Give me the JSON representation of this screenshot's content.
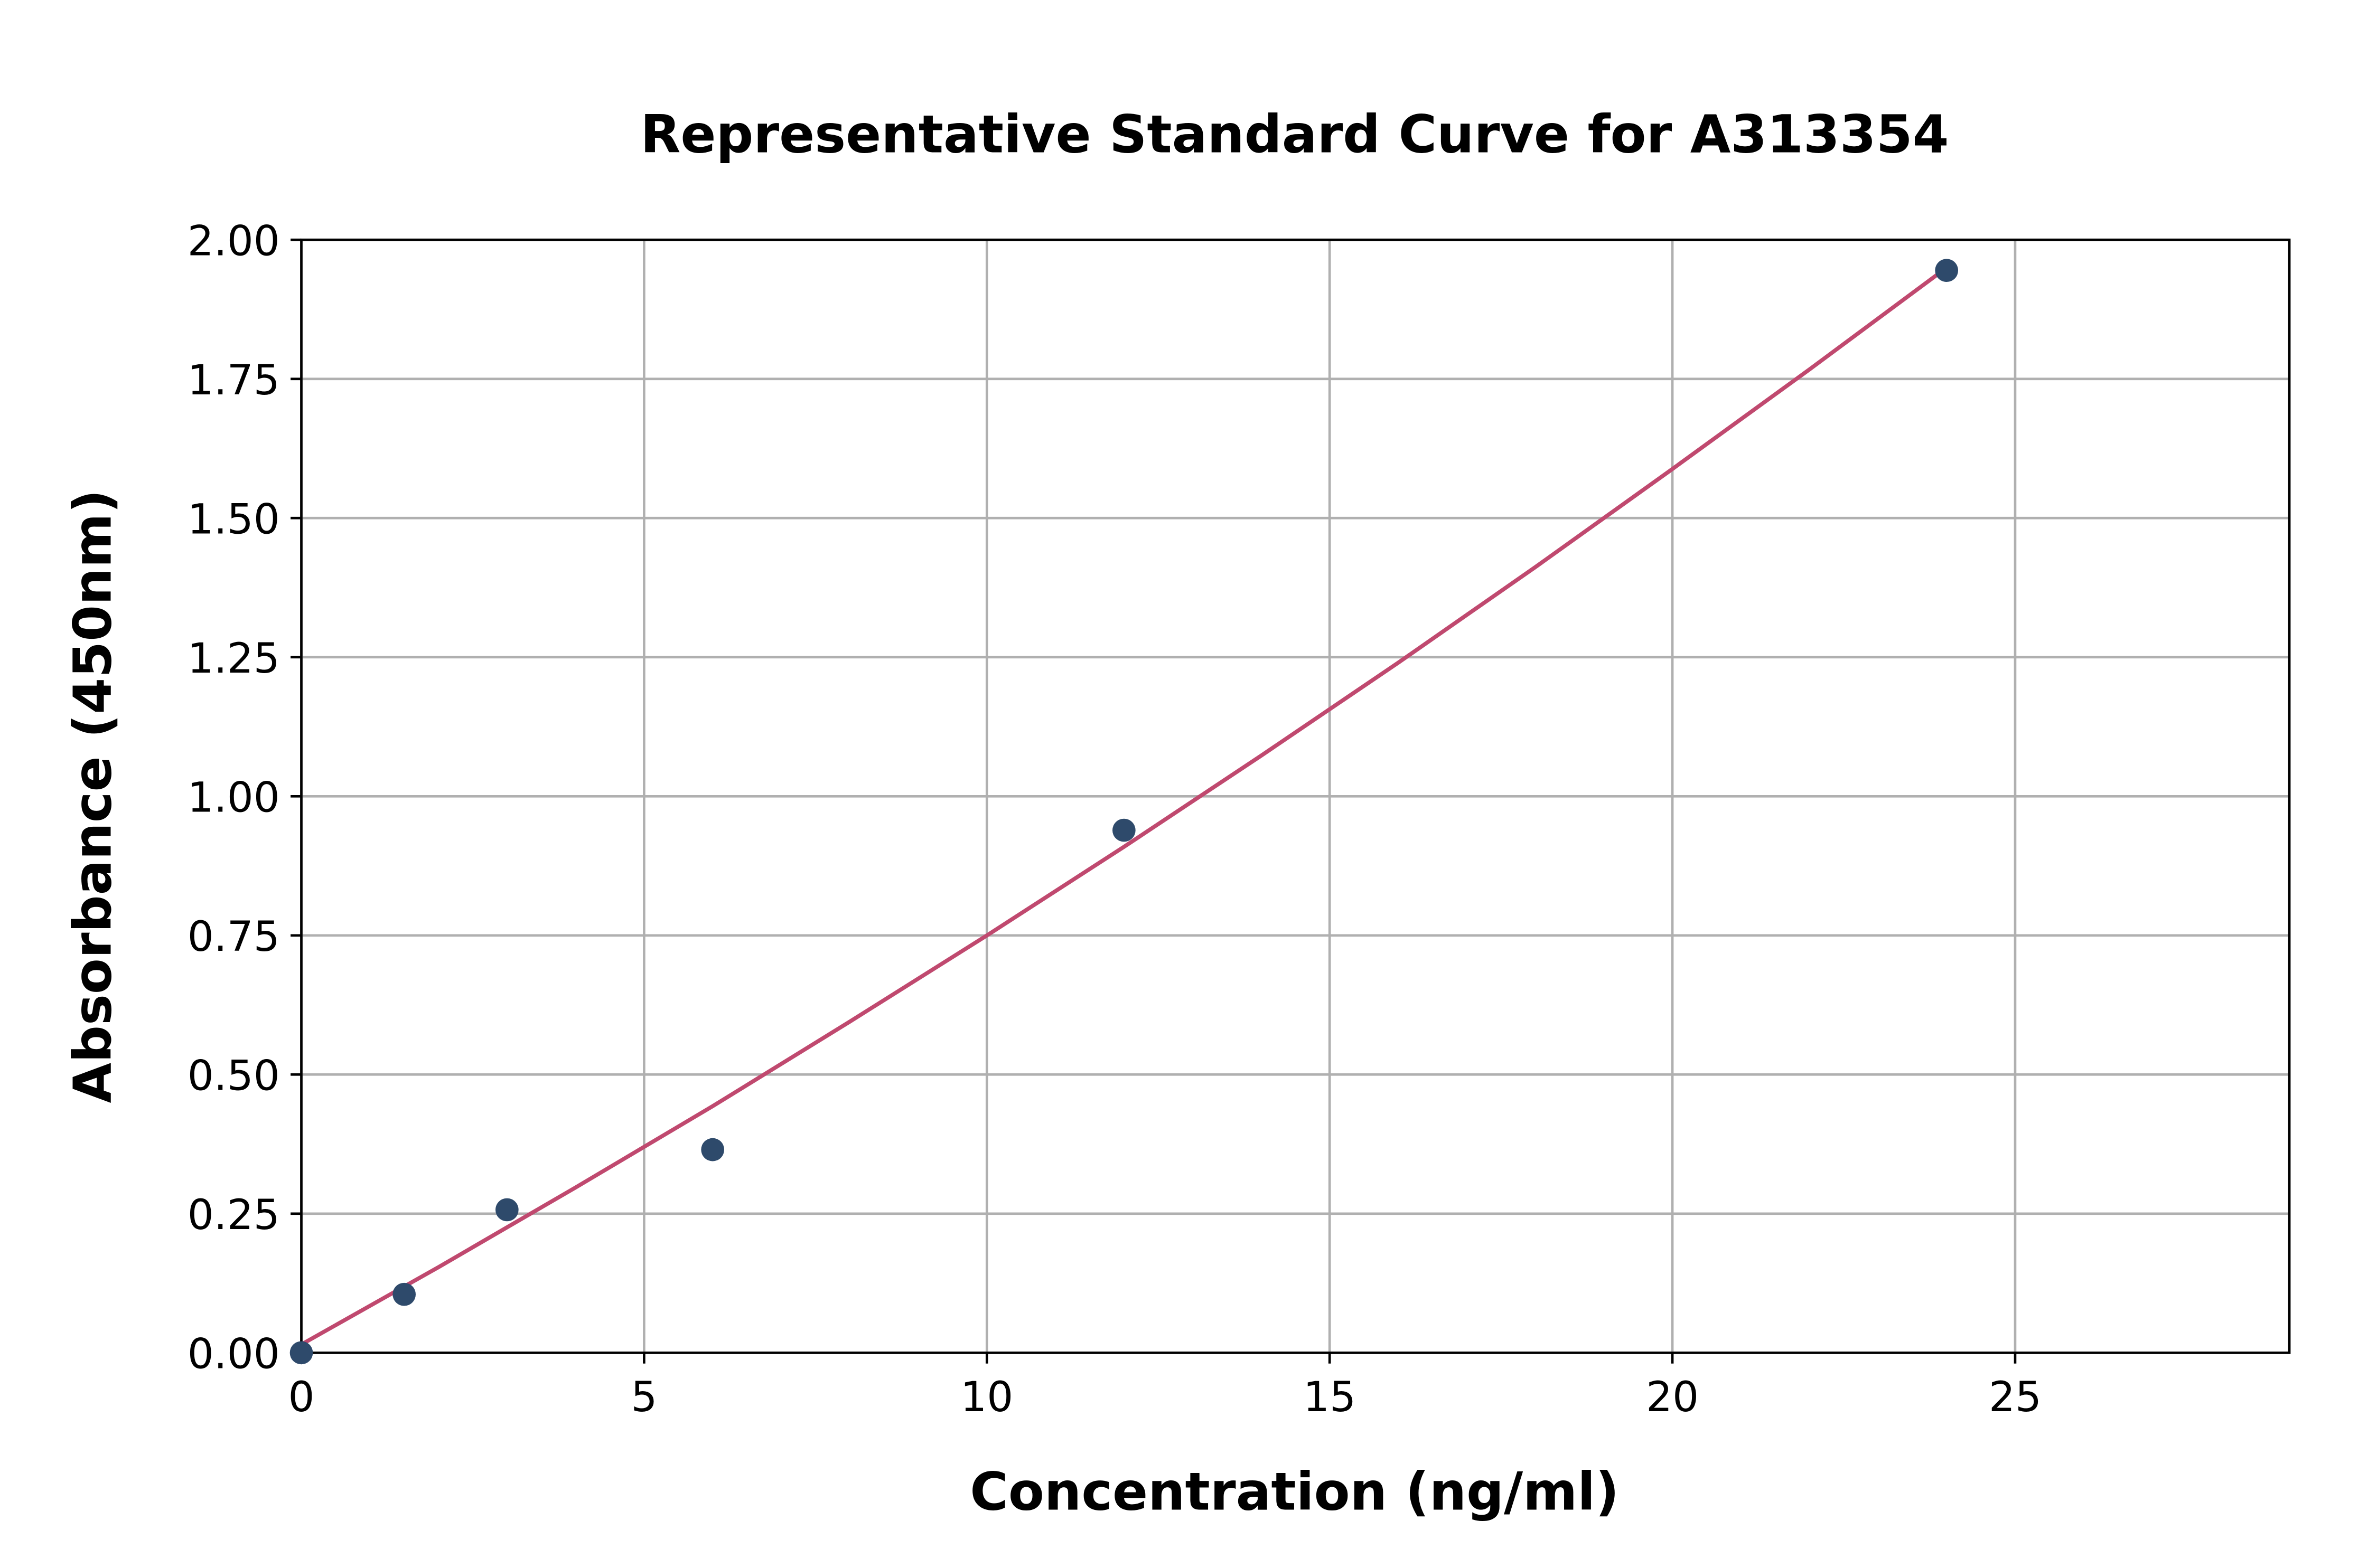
{
  "chart_data": {
    "type": "scatter",
    "title": "Representative Standard Curve for A313354",
    "xlabel": "Concentration (ng/ml)",
    "ylabel": "Absorbance (450nm)",
    "xlim": [
      0,
      29
    ],
    "ylim": [
      0,
      2.0
    ],
    "xticks": [
      0,
      5,
      10,
      15,
      20,
      25
    ],
    "xtick_labels": [
      "0",
      "5",
      "10",
      "15",
      "20",
      "25"
    ],
    "yticks": [
      0,
      0.25,
      0.5,
      0.75,
      1.0,
      1.25,
      1.5,
      1.75,
      2.0
    ],
    "ytick_labels": [
      "0.00",
      "0.25",
      "0.50",
      "0.75",
      "1.00",
      "1.25",
      "1.50",
      "1.75",
      "2.00"
    ],
    "grid": true,
    "points": {
      "x": [
        0,
        1.5,
        3,
        6,
        12,
        24
      ],
      "y": [
        0.0,
        0.105,
        0.257,
        0.365,
        0.939,
        1.945
      ],
      "color": "#2e4a6b"
    },
    "fit_curve": {
      "x": [
        0,
        2,
        4,
        6,
        8,
        10,
        12,
        14,
        16,
        18,
        20,
        22,
        24
      ],
      "y": [
        0.015,
        0.154,
        0.297,
        0.443,
        0.595,
        0.75,
        0.909,
        1.073,
        1.24,
        1.412,
        1.588,
        1.767,
        1.95
      ],
      "color": "#c0496f"
    }
  }
}
